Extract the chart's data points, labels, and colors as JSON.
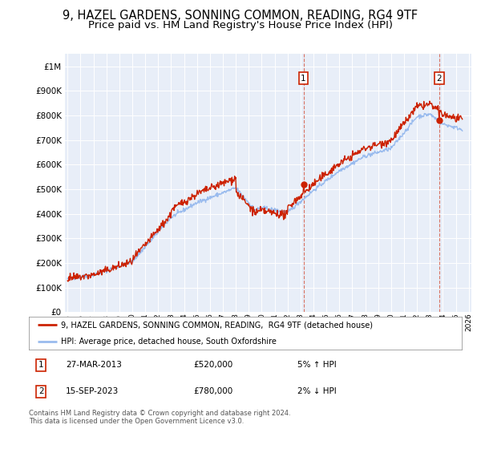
{
  "title": "9, HAZEL GARDENS, SONNING COMMON, READING, RG4 9TF",
  "subtitle": "Price paid vs. HM Land Registry's House Price Index (HPI)",
  "ytick_values": [
    0,
    100000,
    200000,
    300000,
    400000,
    500000,
    600000,
    700000,
    800000,
    900000,
    1000000
  ],
  "ylim": [
    0,
    1050000
  ],
  "xlim_start": 1994.8,
  "xlim_end": 2026.2,
  "background_color": "#ffffff",
  "plot_bg_color": "#e8eef8",
  "grid_color": "#ffffff",
  "legend_label_red": "9, HAZEL GARDENS, SONNING COMMON, READING,  RG4 9TF (detached house)",
  "legend_label_blue": "HPI: Average price, detached house, South Oxfordshire",
  "point1_x": 2013.23,
  "point1_price": 520000,
  "point2_x": 2023.71,
  "point2_price": 780000,
  "footer": "Contains HM Land Registry data © Crown copyright and database right 2024.\nThis data is licensed under the Open Government Licence v3.0.",
  "line_red_color": "#cc2200",
  "line_blue_color": "#99bbee",
  "title_fontsize": 10.5,
  "subtitle_fontsize": 9.5
}
